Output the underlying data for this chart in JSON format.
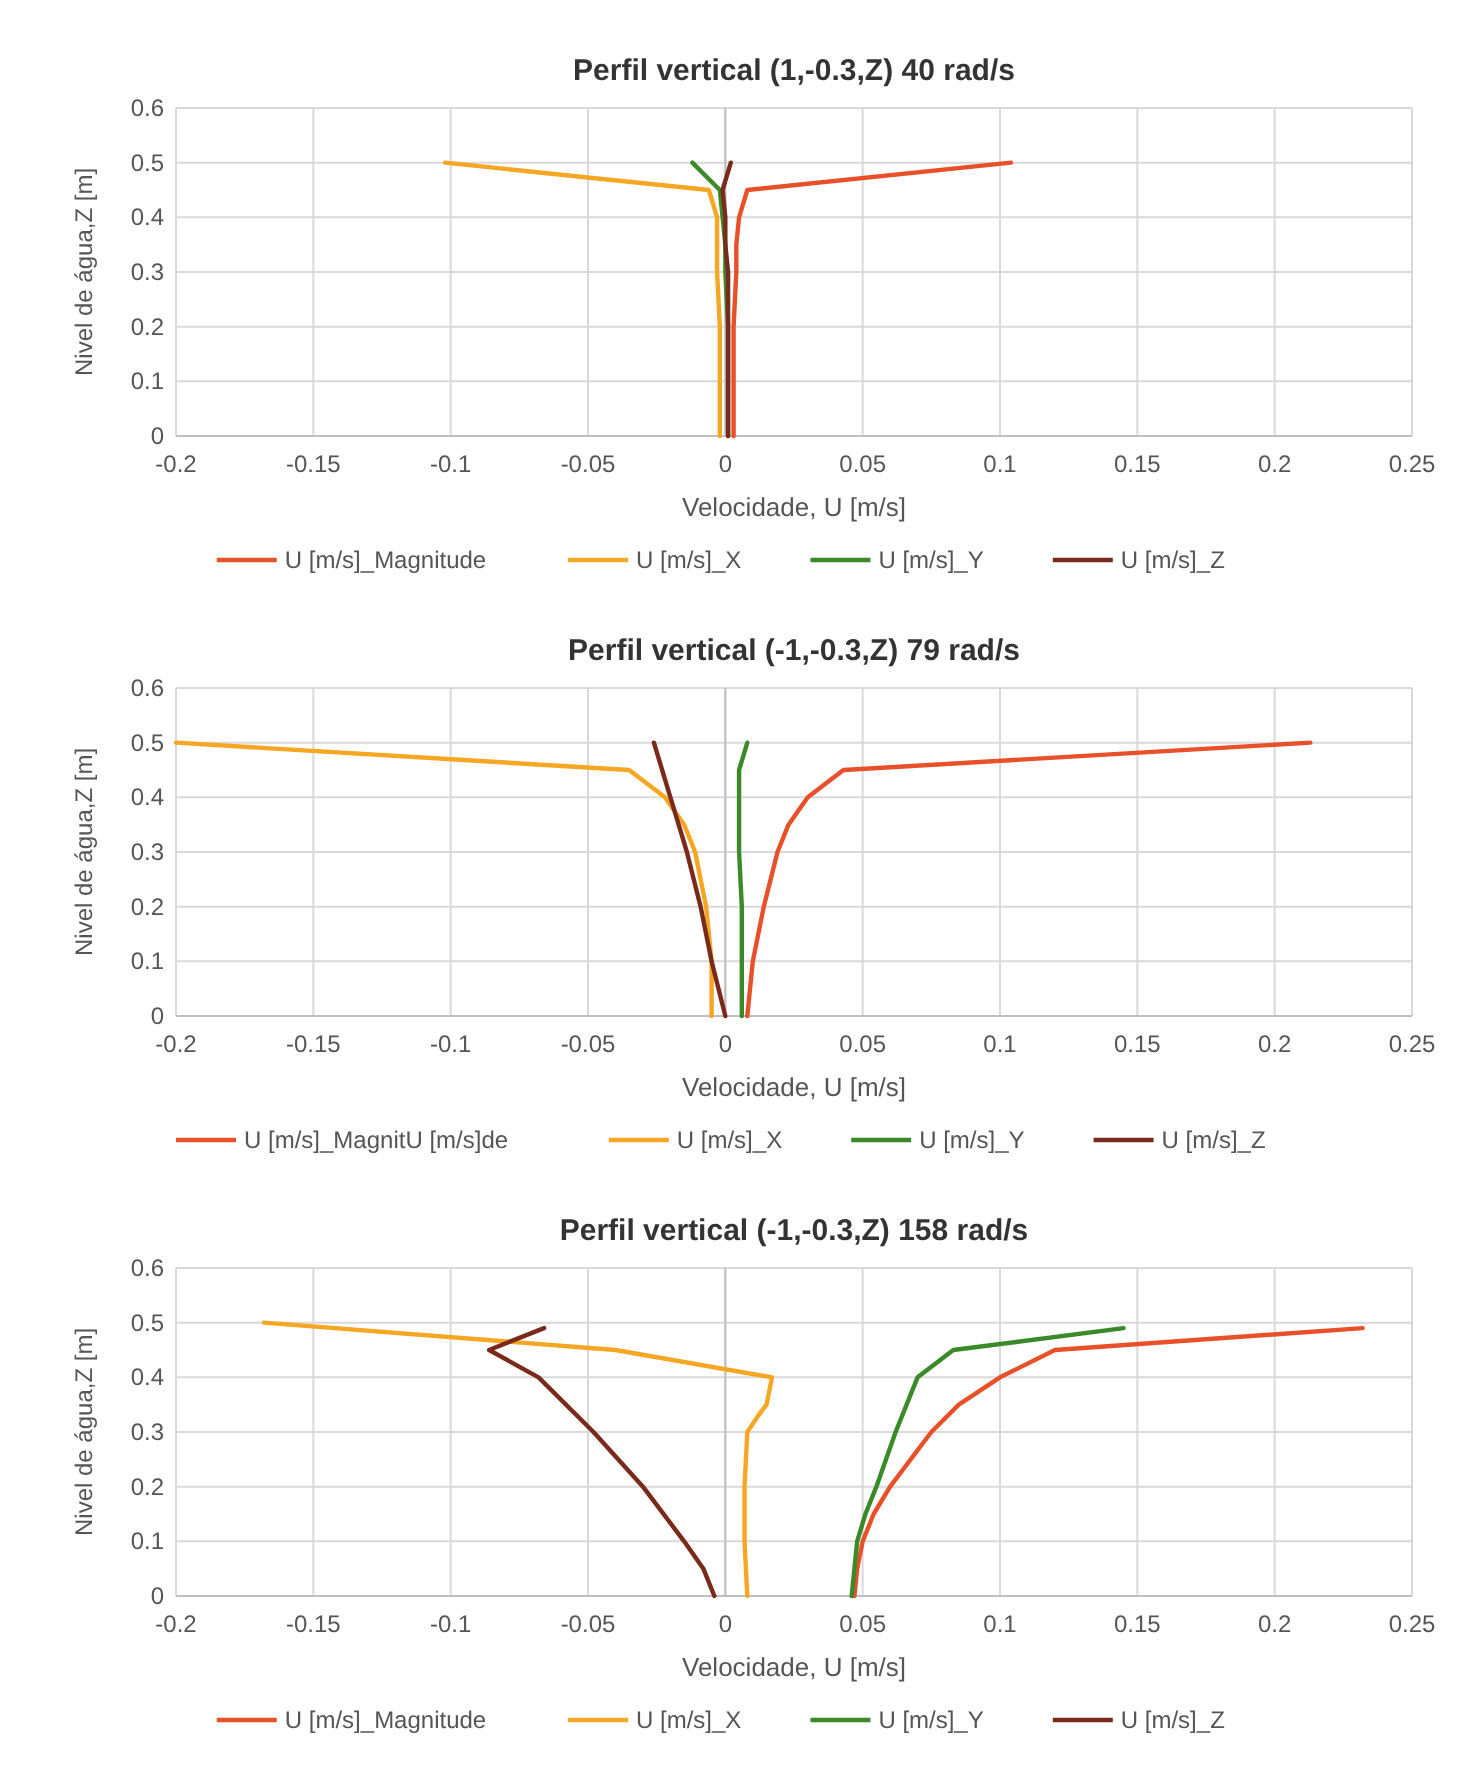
{
  "chart_data": [
    {
      "type": "line",
      "title": "Perfil vertical (1,-0.3,Z) 40 rad/s",
      "xlabel": "Velocidade, U [m/s]",
      "ylabel": "Nivel de água,Z [m]",
      "xlim": [
        -0.2,
        0.25
      ],
      "xticks": [
        -0.2,
        -0.15,
        -0.1,
        -0.05,
        0,
        0.05,
        0.1,
        0.15,
        0.2,
        0.25
      ],
      "ylim": [
        0,
        0.6
      ],
      "yticks": [
        0,
        0.1,
        0.2,
        0.3,
        0.4,
        0.5,
        0.6
      ],
      "grid": true,
      "legend": "bottom",
      "series": [
        {
          "name": "U [m/s]_Magnitude",
          "color": "#e8502a",
          "x": [
            0.003,
            0.003,
            0.003,
            0.004,
            0.004,
            0.005,
            0.008,
            0.104
          ],
          "values": [
            0,
            0.1,
            0.2,
            0.3,
            0.35,
            0.4,
            0.45,
            0.5
          ]
        },
        {
          "name": "U [m/s]_X",
          "color": "#f5a623",
          "x": [
            -0.002,
            -0.002,
            -0.002,
            -0.003,
            -0.003,
            -0.003,
            -0.006,
            -0.102
          ],
          "values": [
            0,
            0.1,
            0.2,
            0.3,
            0.35,
            0.4,
            0.45,
            0.5
          ]
        },
        {
          "name": "U [m/s]_Y",
          "color": "#3a8a2a",
          "x": [
            0.001,
            0.001,
            0.001,
            0,
            0,
            -0.001,
            -0.002,
            -0.012
          ],
          "values": [
            0,
            0.1,
            0.2,
            0.3,
            0.35,
            0.4,
            0.45,
            0.5
          ]
        },
        {
          "name": "U [m/s]_Z",
          "color": "#7a2a1a",
          "x": [
            0.001,
            0.001,
            0.001,
            0.001,
            0,
            0,
            -0.001,
            0.002
          ],
          "values": [
            0,
            0.1,
            0.2,
            0.3,
            0.35,
            0.4,
            0.45,
            0.5
          ]
        }
      ]
    },
    {
      "type": "line",
      "title": "Perfil vertical (-1,-0.3,Z) 79 rad/s",
      "xlabel": "Velocidade, U [m/s]",
      "ylabel": "Nivel de água,Z [m]",
      "xlim": [
        -0.2,
        0.25
      ],
      "xticks": [
        -0.2,
        -0.15,
        -0.1,
        -0.05,
        0,
        0.05,
        0.1,
        0.15,
        0.2,
        0.25
      ],
      "ylim": [
        0,
        0.6
      ],
      "yticks": [
        0,
        0.1,
        0.2,
        0.3,
        0.4,
        0.5,
        0.6
      ],
      "grid": true,
      "legend": "bottom",
      "series": [
        {
          "name": "U [m/s]_MagnitU [m/s]de",
          "color": "#e8502a",
          "x": [
            0.008,
            0.01,
            0.014,
            0.019,
            0.023,
            0.03,
            0.043,
            0.213
          ],
          "values": [
            0,
            0.1,
            0.2,
            0.3,
            0.35,
            0.4,
            0.45,
            0.5
          ]
        },
        {
          "name": "U [m/s]_X",
          "color": "#f5a623",
          "x": [
            -0.005,
            -0.005,
            -0.007,
            -0.011,
            -0.015,
            -0.022,
            -0.035,
            -0.2
          ],
          "values": [
            0,
            0.1,
            0.2,
            0.3,
            0.35,
            0.4,
            0.45,
            0.5
          ]
        },
        {
          "name": "U [m/s]_Y",
          "color": "#3a8a2a",
          "x": [
            0.006,
            0.006,
            0.006,
            0.005,
            0.005,
            0.005,
            0.005,
            0.008
          ],
          "values": [
            0,
            0.1,
            0.2,
            0.3,
            0.35,
            0.4,
            0.45,
            0.5
          ]
        },
        {
          "name": "U [m/s]_Z",
          "color": "#7a2a1a",
          "x": [
            0,
            -0.005,
            -0.009,
            -0.014,
            -0.017,
            -0.02,
            -0.023,
            -0.026
          ],
          "values": [
            0,
            0.1,
            0.2,
            0.3,
            0.35,
            0.4,
            0.45,
            0.5
          ]
        }
      ]
    },
    {
      "type": "line",
      "title": "Perfil vertical (-1,-0.3,Z) 158 rad/s",
      "xlabel": "Velocidade, U [m/s]",
      "ylabel": "Nivel de água,Z [m]",
      "xlim": [
        -0.2,
        0.25
      ],
      "xticks": [
        -0.2,
        -0.15,
        -0.1,
        -0.05,
        0,
        0.05,
        0.1,
        0.15,
        0.2,
        0.25
      ],
      "ylim": [
        0,
        0.6
      ],
      "yticks": [
        0,
        0.1,
        0.2,
        0.3,
        0.4,
        0.5,
        0.6
      ],
      "grid": true,
      "legend": "bottom",
      "series": [
        {
          "name": "U [m/s]_Magnitude",
          "color": "#e8502a",
          "x": [
            0.047,
            0.048,
            0.05,
            0.054,
            0.06,
            0.075,
            0.085,
            0.1,
            0.12,
            0.232
          ],
          "values": [
            0,
            0.05,
            0.1,
            0.15,
            0.2,
            0.3,
            0.35,
            0.4,
            0.45,
            0.49
          ]
        },
        {
          "name": "U [m/s]_X",
          "color": "#f5a623",
          "x": [
            0.008,
            0.007,
            0.007,
            0.008,
            0.012,
            0.015,
            0.017,
            -0.04,
            -0.168
          ],
          "values": [
            0,
            0.1,
            0.2,
            0.3,
            0.33,
            0.35,
            0.4,
            0.45,
            0.5
          ]
        },
        {
          "name": "U [m/s]_Y",
          "color": "#3a8a2a",
          "x": [
            0.046,
            0.047,
            0.048,
            0.051,
            0.055,
            0.062,
            0.066,
            0.07,
            0.083,
            0.145
          ],
          "values": [
            0,
            0.05,
            0.1,
            0.15,
            0.2,
            0.3,
            0.35,
            0.4,
            0.45,
            0.49
          ]
        },
        {
          "name": "U [m/s]_Z",
          "color": "#7a2a1a",
          "x": [
            -0.004,
            -0.008,
            -0.015,
            -0.03,
            -0.048,
            -0.068,
            -0.086,
            -0.066
          ],
          "values": [
            0,
            0.05,
            0.1,
            0.2,
            0.3,
            0.4,
            0.45,
            0.49
          ]
        }
      ]
    }
  ]
}
